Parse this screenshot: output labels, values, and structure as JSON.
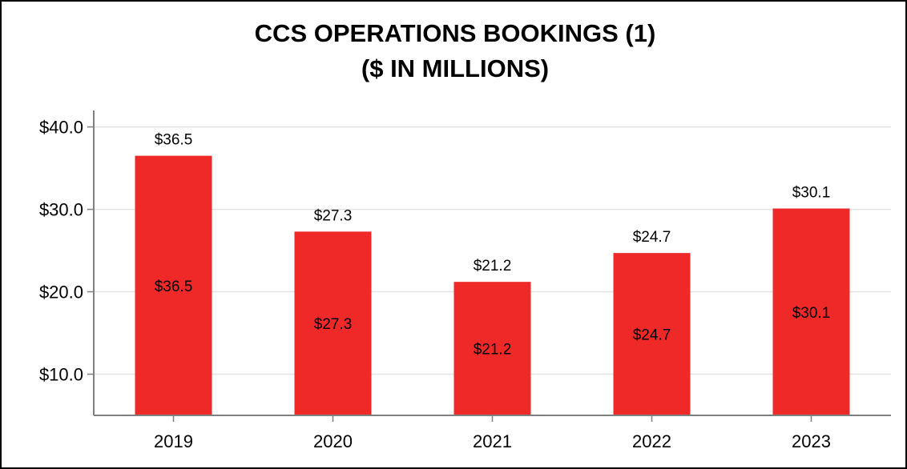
{
  "chart_data": {
    "type": "bar",
    "title": "CCS OPERATIONS BOOKINGS (1)",
    "subtitle": "($ IN MILLIONS)",
    "categories": [
      "2019",
      "2020",
      "2021",
      "2022",
      "2023"
    ],
    "values": [
      36.5,
      27.3,
      21.2,
      24.7,
      30.1
    ],
    "value_labels": [
      "$36.5",
      "$27.3",
      "$21.2",
      "$24.7",
      "$30.1"
    ],
    "ylim": [
      5,
      42
    ],
    "yticks": [
      10,
      20,
      30,
      40
    ],
    "ytick_labels": [
      "$10.0",
      "$20.0",
      "$30.0",
      "$40.0"
    ],
    "xlabel": "",
    "ylabel": "",
    "grid": true,
    "bar_color": "#ee2927",
    "grid_color": "#e3e3e3",
    "axis_color": "#7f7f7f"
  }
}
